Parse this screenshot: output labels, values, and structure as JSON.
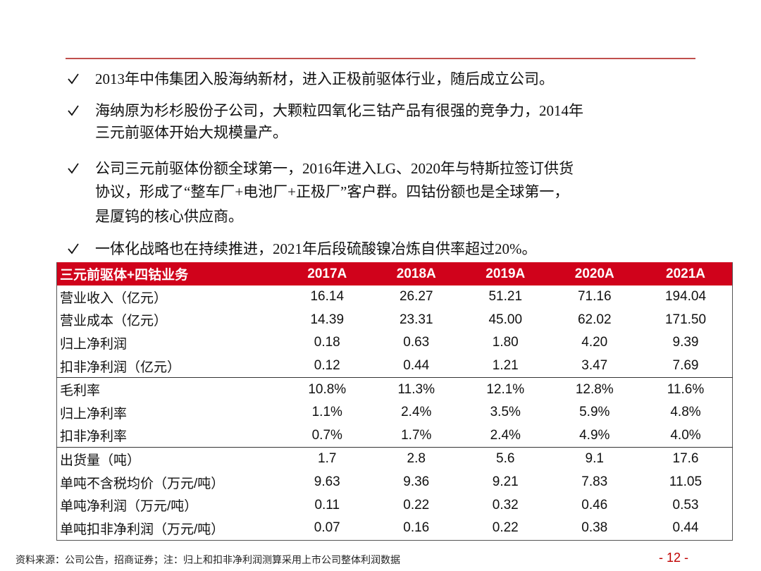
{
  "bullets": [
    [
      "2013年中伟集团入股海纳新材，进入正极前驱体行业，随后成立公司。"
    ],
    [
      "海纳原为杉杉股份子公司，大颗粒四氧化三钴产品有很强的竞争力，2014年",
      "三元前驱体开始大规模量产。"
    ],
    [
      "公司三元前驱体份额全球第一，2016年进入LG、2020年与特斯拉签订供货",
      "协议，形成了“整车厂+电池厂+正极厂”客户群。四钴份额也是全球第一，",
      "是厦钨的核心供应商。"
    ],
    [
      "一体化战略也在持续推进，2021年后段硫酸镍冶炼自供率超过20%。"
    ]
  ],
  "table": {
    "header": [
      "三元前驱体+四钴业务",
      "2017A",
      "2018A",
      "2019A",
      "2020A",
      "2021A"
    ],
    "rows": [
      [
        "营业收入（亿元）",
        "16.14",
        "26.27",
        "51.21",
        "71.16",
        "194.04"
      ],
      [
        "营业成本（亿元）",
        "14.39",
        "23.31",
        "45.00",
        "62.02",
        "171.50"
      ],
      [
        "归上净利润",
        "0.18",
        "0.63",
        "1.80",
        "4.20",
        "9.39"
      ],
      [
        "扣非净利润（亿元）",
        "0.12",
        "0.44",
        "1.21",
        "3.47",
        "7.69"
      ],
      [
        "毛利率",
        "10.8%",
        "11.3%",
        "12.1%",
        "12.8%",
        "11.6%"
      ],
      [
        "归上净利率",
        "1.1%",
        "2.4%",
        "3.5%",
        "5.9%",
        "4.8%"
      ],
      [
        "扣非净利率",
        "0.7%",
        "1.7%",
        "2.4%",
        "4.9%",
        "4.0%"
      ],
      [
        "出货量（吨）",
        "1.7",
        "2.8",
        "5.6",
        "9.1",
        "17.6"
      ],
      [
        "单吨不含税均价（万元/吨）",
        "9.63",
        "9.36",
        "9.21",
        "7.83",
        "11.05"
      ],
      [
        "单吨净利润（万元/吨）",
        "0.11",
        "0.22",
        "0.32",
        "0.46",
        "0.53"
      ],
      [
        "单吨扣非净利润（万元/吨）",
        "0.07",
        "0.16",
        "0.22",
        "0.38",
        "0.44"
      ]
    ]
  },
  "footer": {
    "source": "资料来源：公司公告，招商证券；注：归上和扣非净利润测算采用上市公司整体利润数据",
    "page": "- 12 -"
  }
}
